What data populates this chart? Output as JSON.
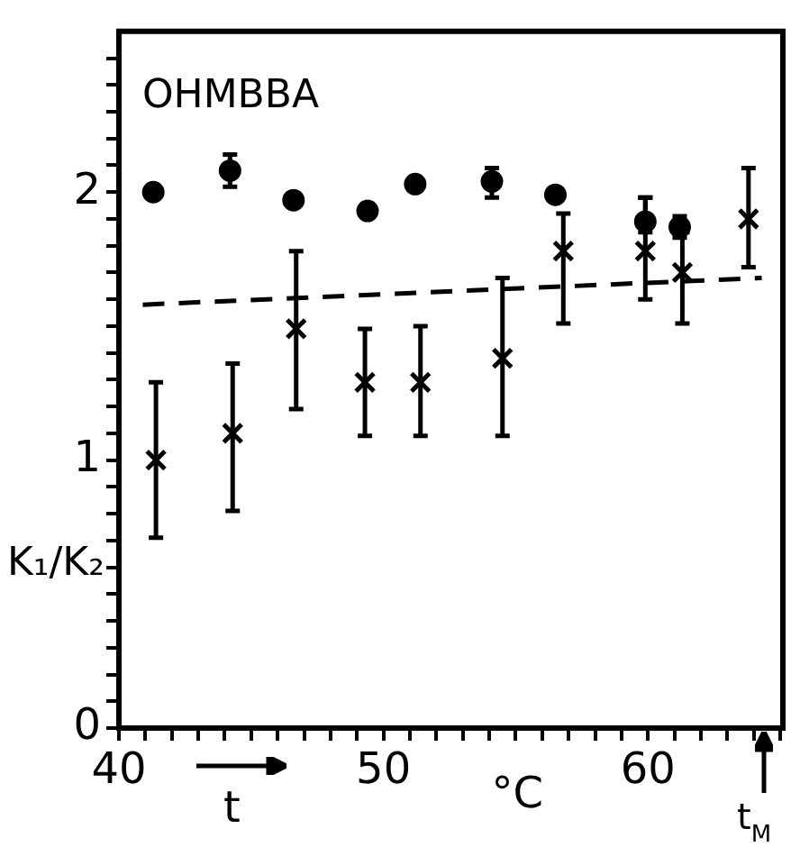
{
  "chart_data": {
    "type": "scatter",
    "xlabel": "t",
    "ylabel": "K₁/K₂",
    "annotations": [
      "OHMBBA",
      "°C",
      "t$_{M}$"
    ],
    "xlim": [
      40,
      65.1
    ],
    "xticks": [
      40,
      {
        "value": 41,
        "label": null
      },
      {
        "value": 42,
        "label": null
      },
      {
        "value": 43,
        "label": null
      },
      {
        "value": 44,
        "label": null
      },
      {
        "value": 45,
        "label": null
      },
      {
        "value": 46,
        "label": null
      },
      {
        "value": 47,
        "label": null
      },
      {
        "value": 48,
        "label": null
      },
      {
        "value": 49,
        "label": null
      },
      50,
      {
        "value": 51,
        "label": null
      },
      {
        "value": 52,
        "label": null
      },
      {
        "value": 53,
        "label": null
      },
      {
        "value": 54,
        "label": null
      },
      {
        "value": 55,
        "label": null
      },
      {
        "value": 56,
        "label": null
      },
      {
        "value": 57,
        "label": null
      },
      {
        "value": 58,
        "label": null
      },
      {
        "value": 59,
        "label": null
      },
      60,
      {
        "value": 61,
        "label": null
      },
      {
        "value": 62,
        "label": null
      },
      {
        "value": 63,
        "label": null
      },
      {
        "value": 64,
        "label": null
      },
      {
        "value": 65,
        "label": null
      }
    ],
    "ylim": [
      0,
      2.6
    ],
    "yticks": [
      0,
      {
        "value": 0.1,
        "label": null
      },
      {
        "value": 0.2,
        "label": null
      },
      {
        "value": 0.3,
        "label": null
      },
      {
        "value": 0.4,
        "label": null
      },
      {
        "value": 0.5,
        "label": null
      },
      {
        "value": 0.6,
        "label": null
      },
      {
        "value": 0.7,
        "label": null
      },
      {
        "value": 0.8,
        "label": null
      },
      {
        "value": 0.9,
        "label": null
      },
      1,
      {
        "value": 1.1,
        "label": null
      },
      {
        "value": 1.2,
        "label": null
      },
      {
        "value": 1.3,
        "label": null
      },
      {
        "value": 1.4,
        "label": null
      },
      {
        "value": 1.5,
        "label": null
      },
      {
        "value": 1.6,
        "label": null
      },
      {
        "value": 1.7,
        "label": null
      },
      {
        "value": 1.8,
        "label": null
      },
      {
        "value": 1.9,
        "label": null
      },
      2,
      {
        "value": 2.1,
        "label": null
      },
      {
        "value": 2.2,
        "label": null
      },
      {
        "value": 2.3,
        "label": null
      },
      {
        "value": 2.4,
        "label": null
      },
      {
        "value": 2.5,
        "label": null
      }
    ],
    "grid": false,
    "legend": false,
    "series": [
      {
        "marker": "circle",
        "color": "#000000",
        "x": [
          41.3,
          44.2,
          46.6,
          49.4,
          51.2,
          54.1,
          56.5,
          59.9,
          61.2
        ],
        "values": [
          2.0,
          2.08,
          1.97,
          1.93,
          2.03,
          2.04,
          1.99,
          1.89,
          1.87
        ],
        "errors": [
          null,
          [
            2.02,
            2.14
          ],
          null,
          null,
          null,
          [
            1.98,
            2.09
          ],
          null,
          [
            1.85,
            1.98
          ],
          [
            1.83,
            1.91
          ]
        ]
      },
      {
        "marker": "cross",
        "color": "#000000",
        "x": [
          41.4,
          44.3,
          46.7,
          49.3,
          51.4,
          54.5,
          56.8,
          59.9,
          61.3,
          63.8
        ],
        "values": [
          1.0,
          1.1,
          1.49,
          1.29,
          1.29,
          1.38,
          1.78,
          1.78,
          1.7,
          1.9
        ],
        "errors": [
          [
            0.71,
            1.29
          ],
          [
            0.81,
            1.36
          ],
          [
            1.19,
            1.78
          ],
          [
            1.09,
            1.49
          ],
          [
            1.09,
            1.5
          ],
          [
            1.09,
            1.68
          ],
          [
            1.51,
            1.92
          ],
          [
            1.6,
            1.98
          ],
          [
            1.51,
            1.85
          ],
          [
            1.72,
            2.09
          ]
        ]
      },
      {
        "type": "line",
        "marker": "none",
        "line_style": "dashed",
        "color": "#000000",
        "x": [
          40.9,
          64.3
        ],
        "values": [
          1.58,
          1.68
        ]
      }
    ]
  }
}
